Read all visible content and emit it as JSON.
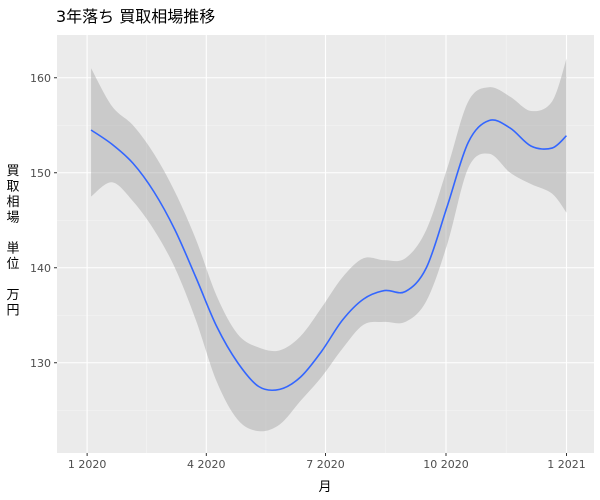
{
  "chart_data": {
    "type": "line",
    "title": "3年落ち 買取相場推移",
    "xlabel": "月",
    "ylabel_lines": [
      "買",
      "取",
      "相",
      "場",
      "",
      "単",
      "位",
      "",
      "万",
      "円"
    ],
    "x_ticks": [
      {
        "label": "1 2020",
        "x": "2020-01-01"
      },
      {
        "label": "4 2020",
        "x": "2020-04-01"
      },
      {
        "label": "7 2020",
        "x": "2020-07-01"
      },
      {
        "label": "10 2020",
        "x": "2020-10-01"
      },
      {
        "label": "1 2021",
        "x": "2021-01-01"
      }
    ],
    "y_ticks": [
      130,
      140,
      150,
      160
    ],
    "xlim": [
      "2019-12-09",
      "2021-01-22"
    ],
    "ylim": [
      120.5,
      164.5
    ],
    "grid": true,
    "series": [
      {
        "type": "smooth_line",
        "color": "#3366FF",
        "x": [
          "2020-01-04",
          "2020-01-20",
          "2020-02-05",
          "2020-02-21",
          "2020-03-08",
          "2020-03-24",
          "2020-04-09",
          "2020-04-25",
          "2020-05-11",
          "2020-05-27",
          "2020-06-12",
          "2020-06-28",
          "2020-07-14",
          "2020-07-30",
          "2020-08-15",
          "2020-08-31",
          "2020-09-16",
          "2020-10-02",
          "2020-10-18",
          "2020-11-03",
          "2020-11-19",
          "2020-12-05",
          "2020-12-21",
          "2021-01-01"
        ],
        "y": [
          154.5,
          153.0,
          151.0,
          148.0,
          144.0,
          139.0,
          133.8,
          130.0,
          127.5,
          127.2,
          128.5,
          131.2,
          134.5,
          136.7,
          137.6,
          137.5,
          140.0,
          146.5,
          153.2,
          155.5,
          154.7,
          152.8,
          152.6,
          153.9
        ]
      }
    ],
    "band": {
      "color": "#999999",
      "opacity": 0.4,
      "x": [
        "2020-01-04",
        "2020-01-20",
        "2020-02-05",
        "2020-02-21",
        "2020-03-08",
        "2020-03-24",
        "2020-04-09",
        "2020-04-25",
        "2020-05-11",
        "2020-05-27",
        "2020-06-12",
        "2020-06-28",
        "2020-07-14",
        "2020-07-30",
        "2020-08-15",
        "2020-08-31",
        "2020-09-16",
        "2020-10-02",
        "2020-10-18",
        "2020-11-03",
        "2020-11-19",
        "2020-12-05",
        "2020-12-21",
        "2021-01-01"
      ],
      "upper": [
        161.0,
        157.0,
        155.0,
        152.0,
        148.0,
        143.0,
        137.0,
        133.0,
        131.6,
        131.3,
        132.8,
        135.8,
        139.0,
        141.0,
        140.8,
        141.0,
        144.0,
        150.5,
        157.5,
        159.0,
        158.0,
        156.5,
        157.5,
        162.0
      ],
      "lower": [
        147.5,
        149.0,
        147.0,
        144.0,
        140.0,
        134.5,
        128.0,
        124.0,
        122.8,
        123.5,
        126.0,
        128.5,
        131.5,
        134.0,
        134.3,
        134.3,
        136.5,
        142.5,
        150.5,
        152.0,
        150.0,
        148.8,
        147.8,
        145.8
      ]
    }
  },
  "colors": {
    "panel": "#EBEBEB",
    "grid_major": "#FFFFFF",
    "grid_minor": "#F5F5F5"
  }
}
